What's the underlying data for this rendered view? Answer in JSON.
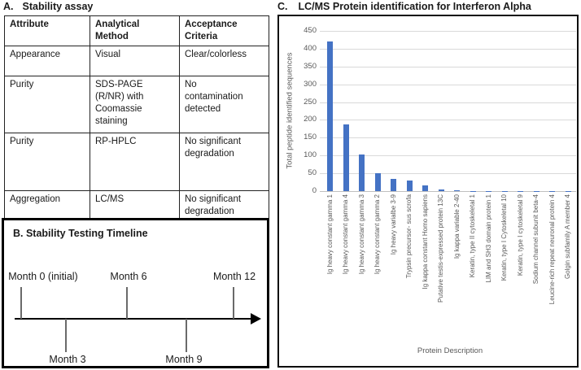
{
  "panel_a": {
    "label": "A.",
    "title": "Stability assay",
    "table": {
      "headers": [
        "Attribute",
        "Analytical Method",
        "Acceptance Criteria"
      ],
      "rows": [
        [
          "Appearance",
          "Visual",
          "Clear/colorless"
        ],
        [
          "Purity",
          "SDS-PAGE (R/NR) with Coomassie staining",
          "No contamination detected"
        ],
        [
          "Purity",
          "RP-HPLC",
          "No significant degradation"
        ],
        [
          "Aggregation",
          "LC/MS",
          "No significant degradation"
        ]
      ]
    }
  },
  "panel_b": {
    "title": "B. Stability Testing Timeline",
    "milestones_above": [
      "Month 0 (initial)",
      "Month 6",
      "Month 12"
    ],
    "milestones_below": [
      "Month 3",
      "Month 9"
    ]
  },
  "panel_c": {
    "label": "C.",
    "title": "LC/MS Protein identification for Interferon Alpha",
    "chart_data": {
      "type": "bar",
      "title": "LC/MS Protein identification for Interferon Alpha",
      "xlabel": "Protein Description",
      "ylabel": "Total peptide identified sequences",
      "ylim": [
        0,
        450
      ],
      "ytick_step": 50,
      "grid": true,
      "legend": false,
      "bar_color": "#4472C4",
      "categories": [
        "Ig heavy constant gamma 1",
        "Ig heavy constant gamma 4",
        "Ig heavy constant gamma 3",
        "Ig heavy constant gamma 2",
        "Ig heavy varialbe 3-9",
        "Trypsin precursor- sus scrofa",
        "Ig kappa constant Homo sapiens",
        "Putative testis-expressed protein 13C",
        "Ig kappa variable 2-40",
        "Keratin, type II cytoskeletal 1",
        "LIM and SH3 domain protein 1",
        "Keratin, type I Cytoskeletal 10",
        "Keratin, type I cytoskeletal 9",
        "Sodium channel subunit beta-4",
        "Leucine-rich repeat neuronal protein 4",
        "Golgin subfamily A member 4"
      ],
      "values": [
        420,
        188,
        103,
        50,
        35,
        30,
        15,
        5,
        3,
        1,
        1,
        1,
        1,
        1,
        1,
        1
      ]
    }
  }
}
